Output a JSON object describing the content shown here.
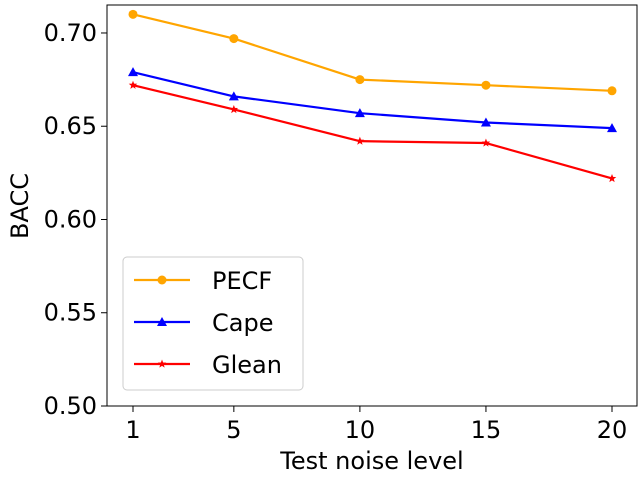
{
  "chart_data": {
    "type": "line",
    "xlabel": "Test noise level",
    "ylabel": "BACC",
    "x": [
      1,
      5,
      10,
      15,
      20
    ],
    "xticks": [
      "1",
      "5",
      "10",
      "15",
      "20"
    ],
    "ylim": [
      0.5,
      0.715
    ],
    "yticks": [
      "0.50",
      "0.55",
      "0.60",
      "0.65",
      "0.70"
    ],
    "yticks_values": [
      0.5,
      0.55,
      0.6,
      0.65,
      0.7
    ],
    "legend_position": "lower-left",
    "grid": false,
    "series": [
      {
        "name": "PECF",
        "color": "#FFA500",
        "marker": "circle",
        "values": [
          0.71,
          0.697,
          0.675,
          0.672,
          0.669
        ]
      },
      {
        "name": "Cape",
        "color": "#0000FF",
        "marker": "triangle",
        "values": [
          0.679,
          0.666,
          0.657,
          0.652,
          0.649
        ]
      },
      {
        "name": "Glean",
        "color": "#FF0000",
        "marker": "star",
        "values": [
          0.672,
          0.659,
          0.642,
          0.641,
          0.622
        ]
      }
    ]
  }
}
